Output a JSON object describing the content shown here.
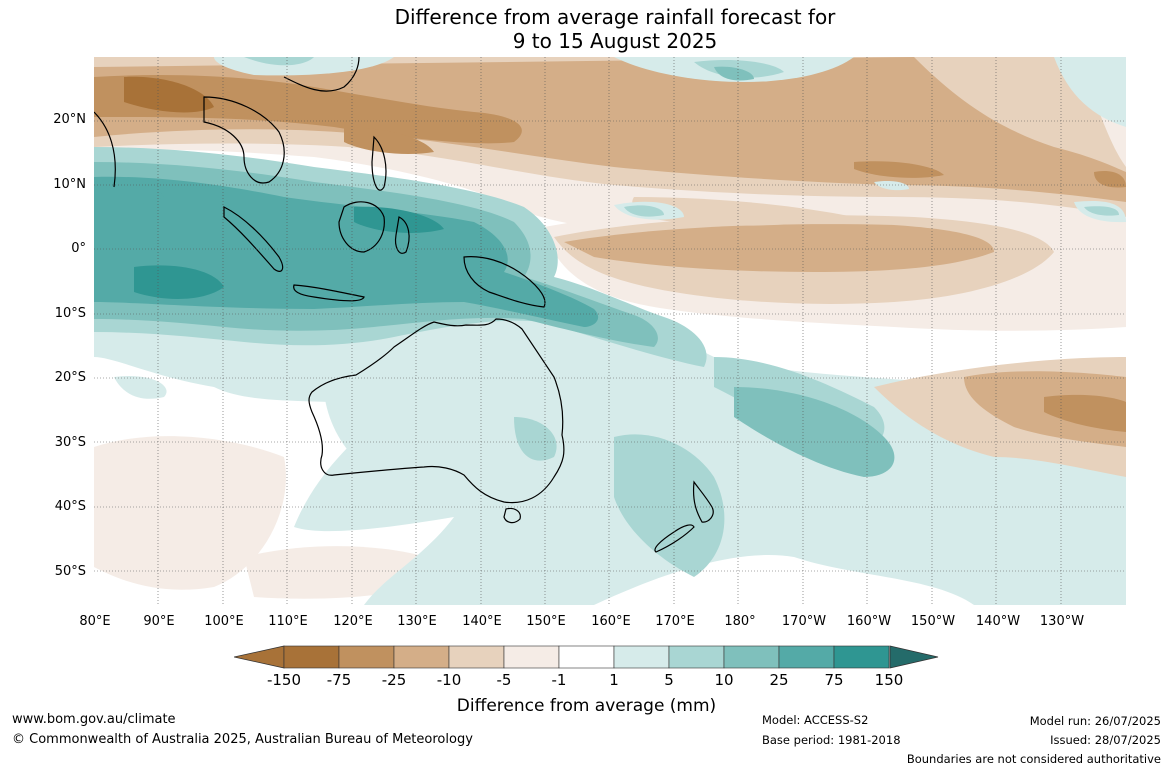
{
  "title": {
    "line1": "Difference from average rainfall forecast for",
    "line2": "9 to 15 August 2025"
  },
  "axes": {
    "lat_labels": [
      "20°N",
      "10°N",
      "0°",
      "10°S",
      "20°S",
      "30°S",
      "40°S",
      "50°S"
    ],
    "lon_labels": [
      "80°E",
      "90°E",
      "100°E",
      "110°E",
      "120°E",
      "130°E",
      "140°E",
      "150°E",
      "160°E",
      "170°E",
      "180°",
      "170°W",
      "160°W",
      "150°W",
      "140°W",
      "130°W"
    ]
  },
  "colorbar": {
    "title": "Difference from average (mm)",
    "labels": [
      "-150",
      "-75",
      "-25",
      "-10",
      "-5",
      "-1",
      "1",
      "5",
      "10",
      "25",
      "75",
      "150"
    ],
    "colors": [
      "#a87238",
      "#c0915f",
      "#d4ae88",
      "#e7d2bd",
      "#f5ece6",
      "#ffffff",
      "#d6ebea",
      "#a9d6d3",
      "#7fc0bc",
      "#54aaa7",
      "#2f9692",
      "#246b6a"
    ]
  },
  "footer": {
    "website": "www.bom.gov.au/climate",
    "copyright": "© Commonwealth of Australia 2025, Australian Bureau of Meteorology",
    "model": "Model: ACCESS-S2",
    "base_period": "Base period: 1981-2018",
    "model_run": "Model run: 26/07/2025",
    "issued": "Issued: 28/07/2025",
    "disclaimer": "Boundaries are not considered authoritative"
  }
}
